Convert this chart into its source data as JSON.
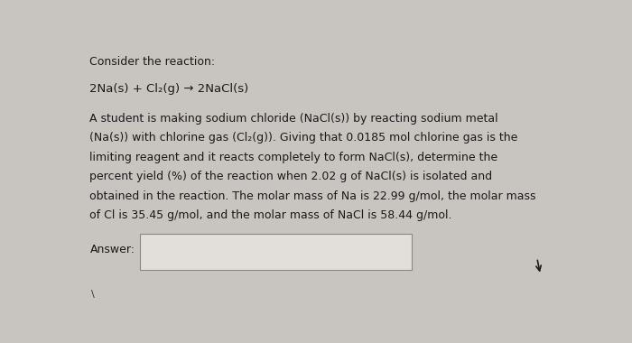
{
  "background_color": "#c8c5c0",
  "text_color": "#1a1a1a",
  "title_line": "Consider the reaction:",
  "reaction_line": "2Na(s) + Cl₂(g) → 2NaCl(s)",
  "body_lines": [
    "A student is making sodium chloride (NaCl(s)) by reacting sodium metal",
    "(Na(s)) with chlorine gas (Cl₂(g)). Giving that 0.0185 mol chlorine gas is the",
    "limiting reagent and it reacts completely to form NaCl(s), determine the",
    "percent yield (%) of the reaction when 2.02 g of NaCl(s) is isolated and",
    "obtained in the reaction. The molar mass of Na is 22.99 g/mol, the molar mass",
    "of Cl is 35.45 g/mol, and the molar mass of NaCl is 58.44 g/mol."
  ],
  "answer_label": "Answer:",
  "answer_box_color": "#e2deda",
  "answer_box_edge_color": "#888888",
  "font_size_title": 9.0,
  "font_size_reaction": 9.5,
  "font_size_body": 9.0,
  "font_size_answer": 9.0
}
